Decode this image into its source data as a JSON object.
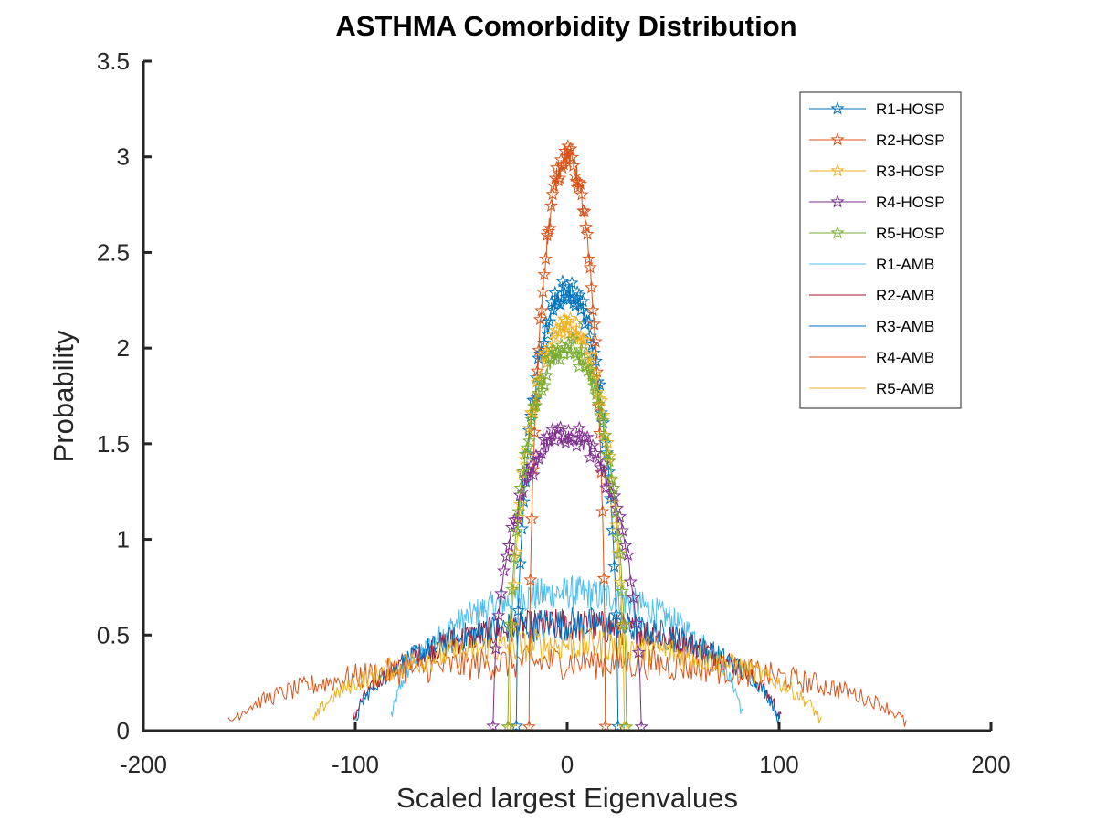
{
  "chart_data": {
    "type": "line",
    "title": "ASTHMA Comorbidity Distribution",
    "xlabel": "Scaled largest Eigenvalues",
    "ylabel": "Probability",
    "xlim": [
      -200,
      200
    ],
    "ylim": [
      0,
      3.5
    ],
    "xticks": [
      "-200",
      "-100",
      "0",
      "100",
      "200"
    ],
    "yticks": [
      "0",
      "0.5",
      "1",
      "1.5",
      "2",
      "2.5",
      "3",
      "3.5"
    ],
    "grid": false,
    "legend_position": "top-right",
    "series": [
      {
        "name": "R1-HOSP",
        "color": "#0072BD",
        "marker": "star",
        "center": 0,
        "peak": 2.3,
        "halfwidth": 24
      },
      {
        "name": "R2-HOSP",
        "color": "#D95319",
        "marker": "star",
        "center": 0,
        "peak": 3.0,
        "halfwidth": 18
      },
      {
        "name": "R3-HOSP",
        "color": "#EDB120",
        "marker": "star",
        "center": 0,
        "peak": 2.1,
        "halfwidth": 27
      },
      {
        "name": "R4-HOSP",
        "color": "#7E2F8E",
        "marker": "star",
        "center": 0,
        "peak": 1.55,
        "halfwidth": 35
      },
      {
        "name": "R5-HOSP",
        "color": "#77AC30",
        "marker": "star",
        "center": 0,
        "peak": 2.0,
        "halfwidth": 28
      },
      {
        "name": "R1-AMB",
        "color": "#4DBEEE",
        "marker": "none",
        "center": 0,
        "peak": 0.72,
        "halfwidth": 83
      },
      {
        "name": "R2-AMB",
        "color": "#A2142F",
        "marker": "none",
        "center": 0,
        "peak": 0.55,
        "halfwidth": 101
      },
      {
        "name": "R3-AMB",
        "color": "#0072BD",
        "marker": "none",
        "center": 0,
        "peak": 0.56,
        "halfwidth": 100
      },
      {
        "name": "R4-AMB",
        "color": "#D95319",
        "marker": "none",
        "center": 0,
        "peak": 0.36,
        "halfwidth": 160
      },
      {
        "name": "R5-AMB",
        "color": "#EDB120",
        "marker": "none",
        "center": 0,
        "peak": 0.45,
        "halfwidth": 120
      }
    ]
  }
}
